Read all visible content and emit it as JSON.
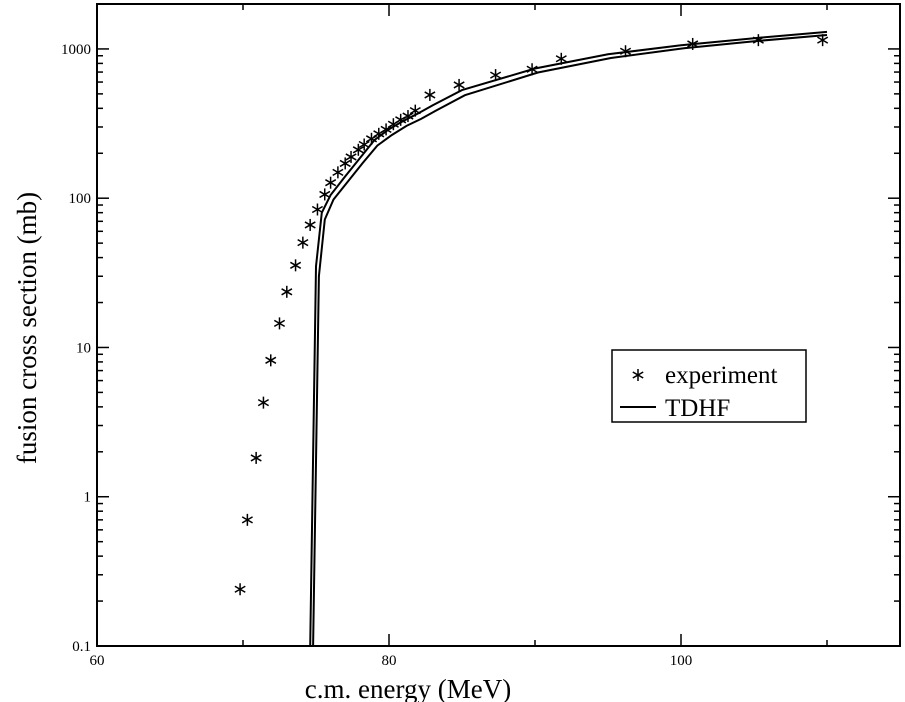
{
  "chart_data": {
    "type": "scatter",
    "title": "",
    "xlabel": "c.m. energy (MeV)",
    "ylabel": "fusion cross section (mb)",
    "xlim": [
      60,
      115
    ],
    "ylim": [
      0.1,
      2000
    ],
    "yscale": "log",
    "grid": false,
    "legend_position": "right-center",
    "x_ticks": [
      {
        "value": 60,
        "label": "60"
      },
      {
        "value": 80,
        "label": "80"
      },
      {
        "value": 100,
        "label": "100"
      }
    ],
    "y_ticks": [
      {
        "value": 0.1,
        "label": "0.1"
      },
      {
        "value": 1,
        "label": "1"
      },
      {
        "value": 10,
        "label": "10"
      },
      {
        "value": 100,
        "label": "100"
      },
      {
        "value": 1000,
        "label": "1000"
      }
    ],
    "series": [
      {
        "name": "experiment",
        "marker": "asterisk",
        "color": "#000000",
        "x": [
          69.8,
          70.3,
          70.9,
          71.4,
          71.9,
          72.5,
          73.0,
          73.6,
          74.1,
          74.6,
          75.1,
          75.6,
          76.0,
          76.5,
          77.0,
          77.4,
          77.9,
          78.3,
          78.8,
          79.3,
          79.8,
          80.3,
          80.8,
          81.3,
          81.8,
          82.8,
          84.8,
          87.3,
          89.8,
          91.8,
          96.2,
          100.8,
          105.3,
          109.7
        ],
        "y": [
          0.24,
          0.7,
          1.82,
          4.27,
          8.2,
          14.5,
          23.6,
          35.5,
          50.4,
          66.2,
          84.0,
          106.0,
          127.0,
          149.0,
          171.0,
          189.0,
          211.0,
          229.0,
          250.0,
          270.0,
          289.0,
          313.0,
          335.0,
          355.0,
          386.0,
          492.0,
          574.0,
          668.0,
          731.0,
          859.0,
          965.0,
          1080.0,
          1145.0,
          1145.0
        ]
      },
      {
        "name": "TDHF",
        "marker": "line",
        "color": "#000000",
        "lines": [
          {
            "x": [
              74.6,
              75.0,
              75.4,
              76.0,
              77.0,
              78.0,
              79.0,
              80.0,
              81.0,
              82.0,
              83.0,
              85.0,
              90.0,
              95.0,
              100.0,
              105.0,
              110.0
            ],
            "y": [
              0.1,
              35.0,
              80.0,
              105.0,
              140.0,
              185.0,
              245.0,
              290.0,
              330.0,
              370.0,
              420.0,
              530.0,
              740.0,
              920.0,
              1060.0,
              1180.0,
              1300.0
            ]
          },
          {
            "x": [
              74.8,
              75.2,
              75.6,
              76.2,
              77.2,
              78.2,
              79.2,
              80.2,
              81.2,
              82.2,
              83.2,
              85.2,
              90.2,
              95.2,
              100.2,
              105.2,
              110.0
            ],
            "y": [
              0.1,
              30.0,
              72.0,
              98.0,
              130.0,
              172.0,
              225.0,
              265.0,
              305.0,
              340.0,
              385.0,
              490.0,
              695.0,
              870.0,
              1010.0,
              1130.0,
              1240.0
            ]
          }
        ]
      }
    ]
  }
}
